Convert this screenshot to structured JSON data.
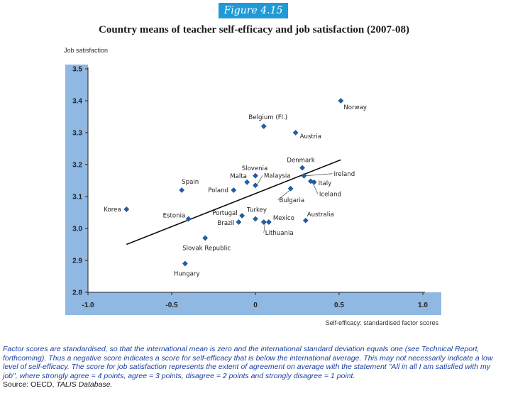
{
  "figure_label": "Figure 4.15",
  "title": "Country means of teacher self-efficacy and job satisfaction (2007-08)",
  "notes": {
    "text": "Factor scores are standardised, so that the international mean is zero and the international standard deviation equals one (see Technical Report, forthcoming). Thus a negative score indicates a score for self-efficacy that is below the international average. This may not necessarily indicate a low level of self-efficacy. The score for job satisfaction represents the extent of agreement on average with the statement \"All in all I am satisfied with my job\", where strongly agree = 4 points, agree = 3 points, disagree = 2 points and strongly disagree = 1 point.",
    "source_prefix": "Source: OECD, ",
    "source_name": "TALIS Database."
  },
  "chart_data": {
    "type": "scatter",
    "xlabel": "Self-efficacy: standardised factor scores",
    "ylabel": "Job satisfaction",
    "xlim": [
      -1.0,
      1.0
    ],
    "ylim": [
      2.8,
      3.5
    ],
    "xticks": [
      "-1.0",
      "-0.5",
      "0",
      "0.5",
      "1.0"
    ],
    "yticks": [
      "2.8",
      "2.9",
      "3.0",
      "3.1",
      "3.2",
      "3.3",
      "3.4",
      "3.5"
    ],
    "grid": false,
    "marker_color": "#1f5fa8",
    "band_color": "#8fb8e2",
    "points": [
      {
        "label": "Norway",
        "x": 0.51,
        "y": 3.4
      },
      {
        "label": "Belgium (Fl.)",
        "x": 0.05,
        "y": 3.32
      },
      {
        "label": "Austria",
        "x": 0.24,
        "y": 3.3
      },
      {
        "label": "Denmark",
        "x": 0.28,
        "y": 3.19
      },
      {
        "label": "Ireland",
        "x": 0.29,
        "y": 3.165
      },
      {
        "label": "Italy",
        "x": 0.35,
        "y": 3.145
      },
      {
        "label": "Iceland",
        "x": 0.33,
        "y": 3.148
      },
      {
        "label": "Bulgaria",
        "x": 0.21,
        "y": 3.125
      },
      {
        "label": "Slovenia",
        "x": 0.0,
        "y": 3.165
      },
      {
        "label": "Malaysia",
        "x": 0.0,
        "y": 3.135
      },
      {
        "label": "Malta",
        "x": -0.05,
        "y": 3.145
      },
      {
        "label": "Poland",
        "x": -0.13,
        "y": 3.12
      },
      {
        "label": "Spain",
        "x": -0.44,
        "y": 3.12
      },
      {
        "label": "Korea",
        "x": -0.77,
        "y": 3.06
      },
      {
        "label": "Estonia",
        "x": -0.4,
        "y": 3.03
      },
      {
        "label": "Portugal",
        "x": -0.08,
        "y": 3.04
      },
      {
        "label": "Brazil",
        "x": -0.1,
        "y": 3.02
      },
      {
        "label": "Turkey",
        "x": 0.0,
        "y": 3.03
      },
      {
        "label": "Mexico",
        "x": 0.08,
        "y": 3.02
      },
      {
        "label": "Lithuania",
        "x": 0.05,
        "y": 3.02
      },
      {
        "label": "Australia",
        "x": 0.3,
        "y": 3.025
      },
      {
        "label": "Slovak Republic",
        "x": -0.3,
        "y": 2.97
      },
      {
        "label": "Hungary",
        "x": -0.42,
        "y": 2.89
      }
    ],
    "trend_line": {
      "x": [
        -0.77,
        0.51
      ],
      "y": [
        2.95,
        3.215
      ]
    }
  }
}
